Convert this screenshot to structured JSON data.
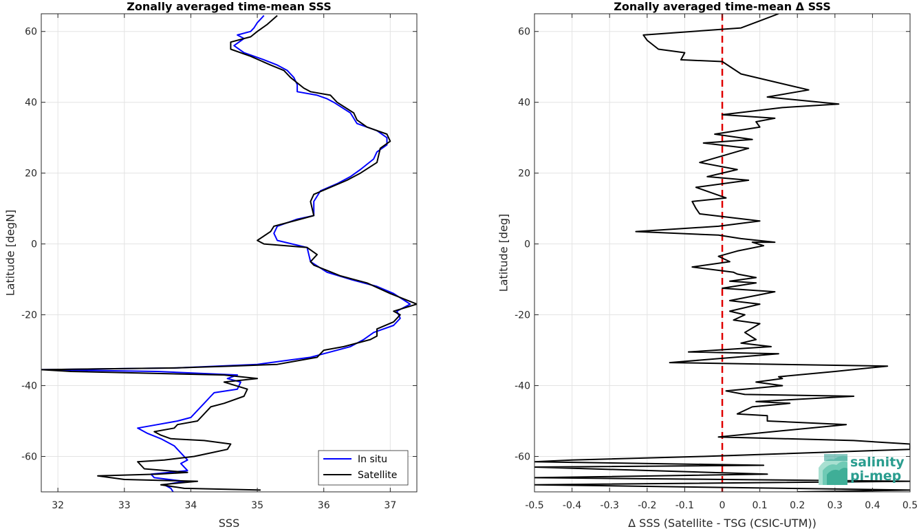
{
  "chart_data": [
    {
      "type": "line",
      "title": "Zonally averaged time-mean SSS",
      "xlabel": "SSS",
      "ylabel": "Latitude [degN]",
      "xlim": [
        31.75,
        37.4
      ],
      "ylim": [
        -70,
        65
      ],
      "xticks": [
        32,
        33,
        34,
        35,
        36,
        37
      ],
      "yticks": [
        -60,
        -40,
        -20,
        0,
        20,
        40,
        60
      ],
      "grid": true,
      "legend_position": "bottom-right",
      "series": [
        {
          "name": "In situ",
          "color": "#0000ff",
          "points": [
            [
              33.75,
              -70.5
            ],
            [
              33.7,
              -69
            ],
            [
              33.6,
              -68
            ],
            [
              33.9,
              -67
            ],
            [
              33.45,
              -66
            ],
            [
              33.4,
              -65
            ],
            [
              33.95,
              -64
            ],
            [
              33.85,
              -62
            ],
            [
              33.95,
              -61
            ],
            [
              33.85,
              -59
            ],
            [
              33.75,
              -57
            ],
            [
              33.55,
              -55
            ],
            [
              33.35,
              -53.5
            ],
            [
              33.2,
              -52
            ],
            [
              33.5,
              -51
            ],
            [
              33.8,
              -50
            ],
            [
              34.0,
              -49
            ],
            [
              34.1,
              -47
            ],
            [
              34.2,
              -45
            ],
            [
              34.3,
              -43
            ],
            [
              34.35,
              -42
            ],
            [
              34.7,
              -41
            ],
            [
              34.75,
              -39
            ],
            [
              34.55,
              -38
            ],
            [
              34.7,
              -37
            ],
            [
              33.5,
              -36
            ],
            [
              31.75,
              -35.5
            ],
            [
              33.8,
              -35
            ],
            [
              34.4,
              -34.5
            ],
            [
              35.0,
              -34
            ],
            [
              35.4,
              -33
            ],
            [
              35.8,
              -32
            ],
            [
              36.0,
              -31
            ],
            [
              36.4,
              -29
            ],
            [
              36.6,
              -27
            ],
            [
              36.75,
              -25
            ],
            [
              37.05,
              -23
            ],
            [
              37.15,
              -21
            ],
            [
              37.1,
              -19
            ],
            [
              37.3,
              -17
            ],
            [
              37.05,
              -14
            ],
            [
              36.8,
              -12
            ],
            [
              36.4,
              -10
            ],
            [
              36.05,
              -8
            ],
            [
              35.8,
              -5
            ],
            [
              35.75,
              -1
            ],
            [
              35.3,
              1
            ],
            [
              35.25,
              3
            ],
            [
              35.3,
              5
            ],
            [
              35.6,
              7
            ],
            [
              35.85,
              8
            ],
            [
              35.85,
              12
            ],
            [
              35.95,
              15
            ],
            [
              36.2,
              17
            ],
            [
              36.4,
              19
            ],
            [
              36.55,
              21
            ],
            [
              36.75,
              24
            ],
            [
              36.8,
              26
            ],
            [
              36.95,
              28
            ],
            [
              36.95,
              30
            ],
            [
              36.8,
              32
            ],
            [
              36.5,
              34
            ],
            [
              36.4,
              37
            ],
            [
              36.15,
              40
            ],
            [
              36.05,
              41
            ],
            [
              35.9,
              42
            ],
            [
              35.6,
              43
            ],
            [
              35.6,
              45
            ],
            [
              35.55,
              47
            ],
            [
              35.45,
              49
            ],
            [
              35.3,
              50.5
            ],
            [
              35.1,
              52
            ],
            [
              34.8,
              54
            ],
            [
              34.65,
              56
            ],
            [
              34.8,
              58
            ],
            [
              34.7,
              59
            ],
            [
              34.9,
              60
            ],
            [
              34.95,
              61
            ],
            [
              35.0,
              62.5
            ],
            [
              35.1,
              64.5
            ]
          ]
        },
        {
          "name": "Satellite",
          "color": "#000000",
          "points": [
            [
              35.05,
              -69.5
            ],
            [
              33.9,
              -69
            ],
            [
              33.55,
              -68
            ],
            [
              34.1,
              -67
            ],
            [
              33.0,
              -66.5
            ],
            [
              32.6,
              -65.5
            ],
            [
              33.5,
              -65
            ],
            [
              33.95,
              -64.5
            ],
            [
              33.3,
              -63.5
            ],
            [
              33.2,
              -61.5
            ],
            [
              33.6,
              -61
            ],
            [
              34.05,
              -60
            ],
            [
              34.3,
              -59
            ],
            [
              34.55,
              -58
            ],
            [
              34.6,
              -56.5
            ],
            [
              34.2,
              -55.5
            ],
            [
              33.7,
              -55
            ],
            [
              33.55,
              -54
            ],
            [
              33.45,
              -53
            ],
            [
              33.75,
              -52
            ],
            [
              33.8,
              -51
            ],
            [
              34.1,
              -50
            ],
            [
              34.2,
              -48
            ],
            [
              34.3,
              -46
            ],
            [
              34.5,
              -45
            ],
            [
              34.8,
              -43
            ],
            [
              34.85,
              -41
            ],
            [
              34.5,
              -39
            ],
            [
              35.0,
              -38
            ],
            [
              34.5,
              -37
            ],
            [
              32.2,
              -36
            ],
            [
              31.75,
              -35.5
            ],
            [
              33.8,
              -35
            ],
            [
              34.6,
              -34.5
            ],
            [
              35.3,
              -34
            ],
            [
              35.6,
              -33
            ],
            [
              35.9,
              -32
            ],
            [
              36.0,
              -30
            ],
            [
              36.3,
              -29
            ],
            [
              36.7,
              -27
            ],
            [
              36.8,
              -26
            ],
            [
              36.8,
              -24
            ],
            [
              37.05,
              -22
            ],
            [
              37.15,
              -20
            ],
            [
              37.05,
              -19
            ],
            [
              37.4,
              -17
            ],
            [
              37.0,
              -14
            ],
            [
              36.65,
              -11
            ],
            [
              36.25,
              -9
            ],
            [
              36.05,
              -7.5
            ],
            [
              35.85,
              -6
            ],
            [
              35.8,
              -5
            ],
            [
              35.9,
              -3
            ],
            [
              35.75,
              -1
            ],
            [
              35.1,
              0
            ],
            [
              35.0,
              1
            ],
            [
              35.2,
              3.5
            ],
            [
              35.25,
              5
            ],
            [
              35.65,
              7
            ],
            [
              35.85,
              8
            ],
            [
              35.8,
              12
            ],
            [
              35.85,
              14
            ],
            [
              36.35,
              18
            ],
            [
              36.55,
              20
            ],
            [
              36.8,
              23
            ],
            [
              36.85,
              27
            ],
            [
              37.0,
              29
            ],
            [
              36.95,
              31
            ],
            [
              36.65,
              33
            ],
            [
              36.5,
              35
            ],
            [
              36.45,
              37
            ],
            [
              36.2,
              40
            ],
            [
              36.1,
              42
            ],
            [
              35.8,
              43
            ],
            [
              35.7,
              44
            ],
            [
              35.5,
              47
            ],
            [
              35.4,
              49
            ],
            [
              35.2,
              50.5
            ],
            [
              34.9,
              53
            ],
            [
              34.6,
              55
            ],
            [
              34.6,
              57
            ],
            [
              34.9,
              58.5
            ],
            [
              35.0,
              60
            ],
            [
              35.15,
              62
            ],
            [
              35.3,
              64.5
            ]
          ]
        }
      ]
    },
    {
      "type": "line",
      "title": "Zonally averaged time-mean Δ SSS",
      "xlabel": "Δ SSS (Satellite - TSG (CSIC-UTM))",
      "ylabel": "Latitude [deg]",
      "xlim": [
        -0.5,
        0.5
      ],
      "ylim": [
        -70,
        65
      ],
      "xticks": [
        -0.5,
        -0.4,
        -0.3,
        -0.2,
        -0.1,
        0,
        0.1,
        0.2,
        0.3,
        0.4,
        0.5
      ],
      "yticks": [
        -60,
        -40,
        -20,
        0,
        20,
        40,
        60
      ],
      "grid": true,
      "reference_line": {
        "x": 0,
        "color": "#e00000",
        "style": "dashed"
      },
      "series": [
        {
          "name": "",
          "color": "#000000",
          "points": [
            [
              0.2,
              -70
            ],
            [
              0.5,
              -69.5
            ],
            [
              -0.5,
              -68
            ],
            [
              0.5,
              -67
            ],
            [
              -0.5,
              -66
            ],
            [
              0.12,
              -65
            ],
            [
              -0.5,
              -63
            ],
            [
              0.11,
              -62.5
            ],
            [
              -0.5,
              -61.5
            ],
            [
              -0.4,
              -61
            ],
            [
              -0.05,
              -60
            ],
            [
              0.5,
              -58
            ],
            [
              0.5,
              -56.5
            ],
            [
              0.35,
              -55.5
            ],
            [
              -0.01,
              -54.5
            ],
            [
              0.33,
              -51
            ],
            [
              0.12,
              -50
            ],
            [
              0.12,
              -48.5
            ],
            [
              0.04,
              -48
            ],
            [
              0.08,
              -46
            ],
            [
              0.18,
              -45
            ],
            [
              0.09,
              -44.5
            ],
            [
              0.35,
              -43
            ],
            [
              0.06,
              -42.5
            ],
            [
              0.01,
              -41.5
            ],
            [
              0.16,
              -40
            ],
            [
              0.09,
              -39
            ],
            [
              0.16,
              -38
            ],
            [
              0.15,
              -37.5
            ],
            [
              0.3,
              -36
            ],
            [
              0.44,
              -34.5
            ],
            [
              -0.14,
              -33.5
            ],
            [
              0.15,
              -31
            ],
            [
              -0.09,
              -30.5
            ],
            [
              0.13,
              -29
            ],
            [
              0.05,
              -28
            ],
            [
              0.09,
              -27
            ],
            [
              0.06,
              -25
            ],
            [
              0.1,
              -22.5
            ],
            [
              0.03,
              -21.5
            ],
            [
              0.06,
              -20
            ],
            [
              0.02,
              -19
            ],
            [
              0.1,
              -17
            ],
            [
              0.02,
              -16
            ],
            [
              0.14,
              -13.5
            ],
            [
              0.0,
              -12.5
            ],
            [
              0.09,
              -11
            ],
            [
              0.02,
              -10.5
            ],
            [
              0.09,
              -9.5
            ],
            [
              0.04,
              -8.5
            ],
            [
              0.03,
              -8
            ],
            [
              -0.08,
              -6.5
            ],
            [
              0.02,
              -5
            ],
            [
              -0.01,
              -3.5
            ],
            [
              0.04,
              -2
            ],
            [
              0.11,
              -0.5
            ],
            [
              0.08,
              0.5
            ],
            [
              0.14,
              0.5
            ],
            [
              0.05,
              1.5
            ],
            [
              -0.01,
              2.5
            ],
            [
              -0.23,
              3.5
            ],
            [
              -0.01,
              5
            ],
            [
              0.1,
              6.5
            ],
            [
              -0.06,
              8.5
            ],
            [
              -0.07,
              10
            ],
            [
              -0.08,
              12
            ],
            [
              0.01,
              13
            ],
            [
              -0.07,
              16
            ],
            [
              0.07,
              18
            ],
            [
              -0.04,
              19
            ],
            [
              0.04,
              21
            ],
            [
              -0.06,
              23
            ],
            [
              0.07,
              27
            ],
            [
              -0.05,
              28.5
            ],
            [
              0.08,
              29.5
            ],
            [
              -0.02,
              31
            ],
            [
              0.1,
              33
            ],
            [
              0.09,
              34.5
            ],
            [
              0.14,
              35.5
            ],
            [
              0.0,
              36.5
            ],
            [
              0.16,
              38.5
            ],
            [
              0.31,
              39.5
            ],
            [
              0.12,
              41.5
            ],
            [
              0.23,
              43.5
            ],
            [
              0.17,
              45
            ],
            [
              0.05,
              48
            ],
            [
              0.0,
              51.5
            ],
            [
              -0.11,
              52
            ],
            [
              -0.1,
              54
            ],
            [
              -0.17,
              55
            ],
            [
              -0.2,
              57.5
            ],
            [
              -0.21,
              59
            ],
            [
              0.05,
              61
            ],
            [
              0.1,
              63
            ],
            [
              0.15,
              65
            ]
          ]
        }
      ]
    }
  ],
  "legend": {
    "items": [
      {
        "label": "In situ",
        "color": "#0000ff"
      },
      {
        "label": "Satellite",
        "color": "#000000"
      }
    ]
  },
  "logo": {
    "line1": "salinity",
    "line2": "pi-mep",
    "color": "#2a9d8f"
  }
}
